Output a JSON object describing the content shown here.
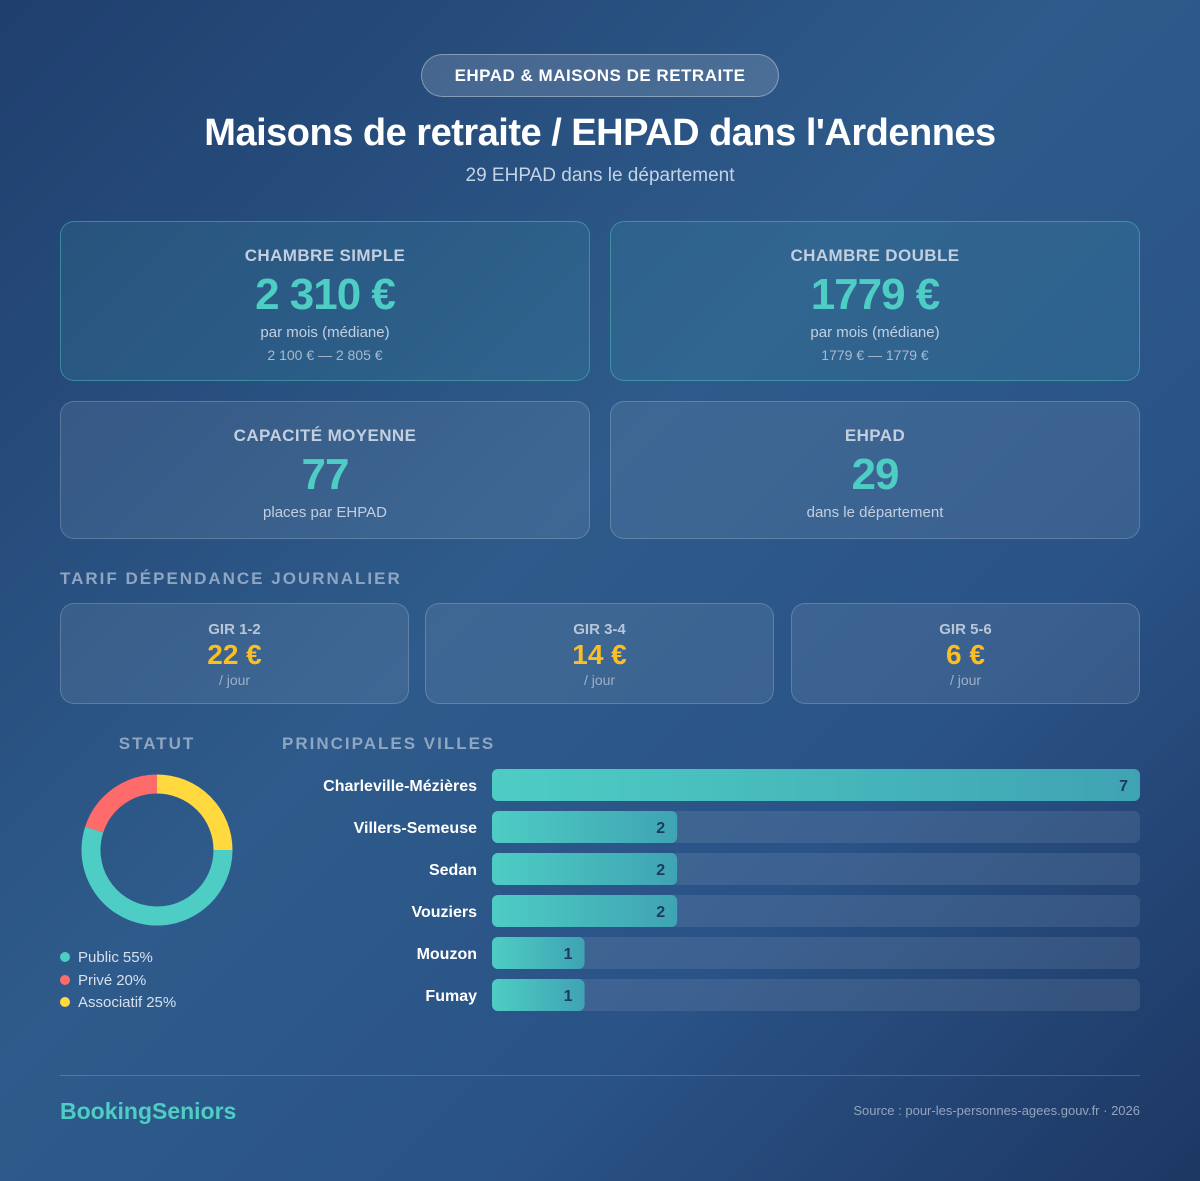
{
  "header": {
    "badge": "EHPAD & MAISONS DE RETRAITE",
    "title": "Maisons de retraite / EHPAD dans l'Ardennes",
    "subtitle": "29 EHPAD dans le département"
  },
  "price_cards": [
    {
      "label": "CHAMBRE SIMPLE",
      "value": "2 310 €",
      "note": "par mois (médiane)",
      "range": "2 100 € — 2 805 €"
    },
    {
      "label": "CHAMBRE DOUBLE",
      "value": "1779 €",
      "note": "par mois (médiane)",
      "range": "1779 € — 1779 €"
    }
  ],
  "stat_cards": [
    {
      "label": "CAPACITÉ MOYENNE",
      "value": "77",
      "note": "places par EHPAD"
    },
    {
      "label": "EHPAD",
      "value": "29",
      "note": "dans le département"
    }
  ],
  "tarif": {
    "title": "TARIF DÉPENDANCE JOURNALIER",
    "items": [
      {
        "label": "GIR 1-2",
        "value": "22 €",
        "unit": "/ jour"
      },
      {
        "label": "GIR 3-4",
        "value": "14 €",
        "unit": "/ jour"
      },
      {
        "label": "GIR 5-6",
        "value": "6 €",
        "unit": "/ jour"
      }
    ]
  },
  "chart_data": [
    {
      "type": "pie",
      "donut": true,
      "title": "STATUT",
      "categories": [
        "Public",
        "Privé",
        "Associatif"
      ],
      "values": [
        55,
        20,
        25
      ],
      "value_labels": [
        "55%",
        "20%",
        "25%"
      ],
      "colors": [
        "#4ecdc4",
        "#ff6b6b",
        "#ffd93d"
      ]
    },
    {
      "type": "bar",
      "orientation": "horizontal",
      "title": "PRINCIPALES VILLES",
      "categories": [
        "Charleville-Mézières",
        "Villers-Semeuse",
        "Sedan",
        "Vouziers",
        "Mouzon",
        "Fumay"
      ],
      "values": [
        7,
        2,
        2,
        2,
        1,
        1
      ],
      "color": "#4ecdc4"
    }
  ],
  "footer": {
    "brand": "BookingSeniors",
    "source": "Source : pour-les-personnes-agees.gouv.fr · 2026"
  }
}
